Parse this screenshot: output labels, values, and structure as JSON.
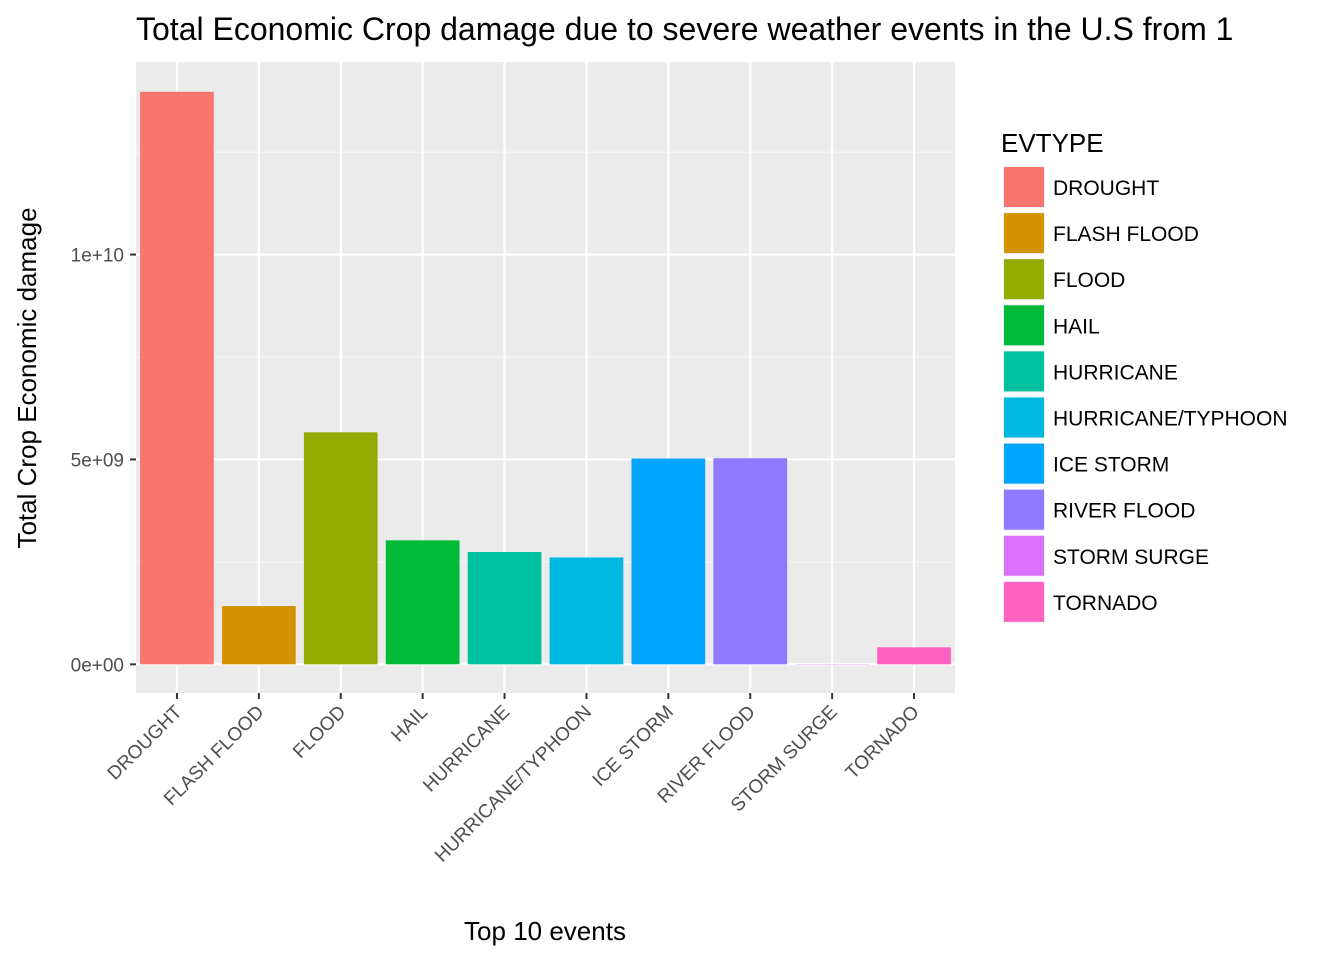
{
  "chart_data": {
    "type": "bar",
    "title": "Total Economic Crop damage due to severe weather events in the U.S from 1",
    "xlabel": "Top 10 events",
    "ylabel": "Total Crop Economic damage",
    "categories": [
      "DROUGHT",
      "FLASH FLOOD",
      "FLOOD",
      "HAIL",
      "HURRICANE",
      "HURRICANE/TYPHOON",
      "ICE STORM",
      "RIVER FLOOD",
      "STORM SURGE",
      "TORNADO"
    ],
    "values": [
      13972566000,
      1421317100,
      5661968450,
      3025954473,
      2741910000,
      2607872800,
      5022113500,
      5029459000,
      5000,
      414953270
    ],
    "colors": [
      "#F8766D",
      "#D39200",
      "#93AA00",
      "#00BA38",
      "#00C19F",
      "#00B9E3",
      "#00A5FF",
      "#8F7AFF",
      "#DB72FB",
      "#FF61C3"
    ],
    "ylim": [
      -700000000,
      14700000000
    ],
    "yticks": [
      0,
      5000000000,
      10000000000
    ],
    "ytick_labels": [
      "0e+00",
      "5e+09",
      "1e+10"
    ],
    "grid": true,
    "legend": {
      "title": "EVTYPE",
      "position": "right",
      "entries": [
        "DROUGHT",
        "FLASH FLOOD",
        "FLOOD",
        "HAIL",
        "HURRICANE",
        "HURRICANE/TYPHOON",
        "ICE STORM",
        "RIVER FLOOD",
        "STORM SURGE",
        "TORNADO"
      ]
    }
  }
}
